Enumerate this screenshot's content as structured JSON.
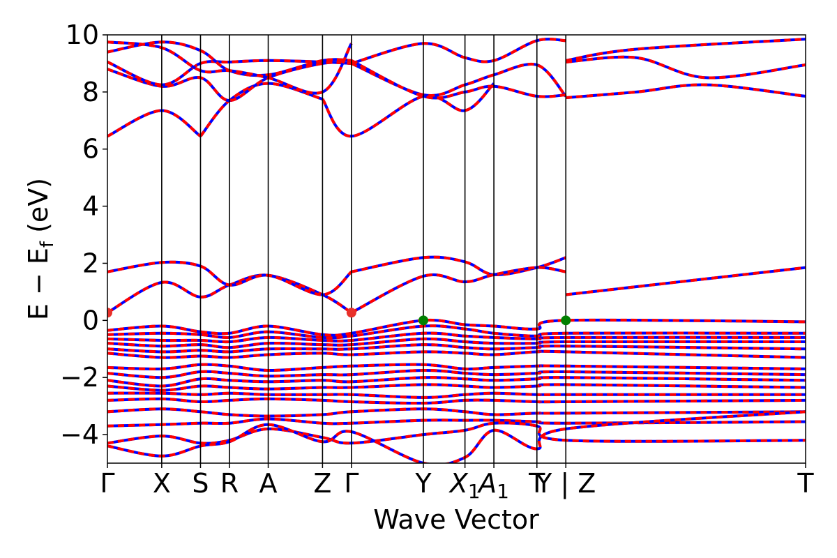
{
  "chart_data": {
    "type": "line",
    "title": "",
    "xlabel": "Wave Vector",
    "ylabel": "E − E",
    "ylabel_sub": "f",
    "ylabel_unit": " (eV)",
    "ylim": [
      -5,
      10
    ],
    "yticks": [
      {
        "value": -4,
        "label": "−4"
      },
      {
        "value": -2,
        "label": "−2"
      },
      {
        "value": 0,
        "label": "0"
      },
      {
        "value": 2,
        "label": "2"
      },
      {
        "value": 4,
        "label": "4"
      },
      {
        "value": 6,
        "label": "6"
      },
      {
        "value": 8,
        "label": "8"
      },
      {
        "value": 10,
        "label": "10"
      }
    ],
    "xlim": [
      0,
      9.9
    ],
    "kpoints": [
      {
        "x": 0.0,
        "main": "Γ",
        "sub": ""
      },
      {
        "x": 0.77,
        "main": "X",
        "sub": ""
      },
      {
        "x": 1.32,
        "main": "S",
        "sub": ""
      },
      {
        "x": 1.73,
        "main": "R",
        "sub": ""
      },
      {
        "x": 2.28,
        "main": "A",
        "sub": ""
      },
      {
        "x": 3.05,
        "main": "Z",
        "sub": ""
      },
      {
        "x": 3.46,
        "main": "Γ",
        "sub": ""
      },
      {
        "x": 4.48,
        "main": "Y",
        "sub": ""
      },
      {
        "x": 5.07,
        "main": "X",
        "sub": "1"
      },
      {
        "x": 5.48,
        "main": "A",
        "sub": "1"
      },
      {
        "x": 6.09,
        "main": "T",
        "sub": ""
      },
      {
        "x": 6.5,
        "main": "Y | Z",
        "sub": ""
      },
      {
        "x": 9.9,
        "main": "T",
        "sub": ""
      }
    ],
    "colors": {
      "band_primary": "#ff0000",
      "band_secondary": "#0000ff",
      "vbm": "#008000",
      "cbm": "#e8312a",
      "kline": "#000000"
    },
    "vbm_points": [
      {
        "x": 4.48,
        "y": 0.0
      },
      {
        "x": 6.5,
        "y": 0.0
      }
    ],
    "cbm_points": [
      {
        "x": 0.0,
        "y": 0.27
      },
      {
        "x": 3.46,
        "y": 0.27
      }
    ],
    "series": [
      {
        "x": [
          0.0,
          0.77,
          1.32,
          1.73,
          2.28,
          3.05,
          3.46
        ],
        "values": [
          0.27,
          1.33,
          0.82,
          1.24,
          1.58,
          0.9,
          0.27
        ]
      },
      {
        "x": [
          0.0,
          0.77,
          1.32,
          1.73,
          2.28,
          3.05,
          3.46
        ],
        "values": [
          1.7,
          2.03,
          1.9,
          1.24,
          1.58,
          0.9,
          1.7
        ]
      },
      {
        "x": [
          3.46,
          4.48,
          5.07,
          5.48,
          6.09,
          6.5
        ],
        "values": [
          1.7,
          2.2,
          2.05,
          1.6,
          1.85,
          2.2
        ]
      },
      {
        "x": [
          3.46,
          4.48,
          5.07,
          5.48,
          6.09,
          6.5
        ],
        "values": [
          0.27,
          1.55,
          1.35,
          1.6,
          1.85,
          1.7
        ]
      },
      {
        "x": [
          6.5,
          9.9
        ],
        "values": [
          0.9,
          1.85
        ]
      },
      {
        "x": [
          0.0,
          0.77,
          1.32
        ],
        "values": [
          6.45,
          7.35,
          6.45
        ]
      },
      {
        "x": [
          1.32,
          1.73,
          2.28,
          3.05
        ],
        "values": [
          6.45,
          7.7,
          8.3,
          7.75
        ]
      },
      {
        "x": [
          3.05,
          3.46,
          4.48,
          5.07,
          5.48
        ],
        "values": [
          7.75,
          6.45,
          7.85,
          7.35,
          8.3
        ]
      },
      {
        "x": [
          0.0,
          0.77,
          1.32,
          1.73,
          2.28,
          3.05,
          3.46
        ],
        "values": [
          8.8,
          8.2,
          8.5,
          7.7,
          8.5,
          9.0,
          9.0
        ]
      },
      {
        "x": [
          0.0,
          0.77,
          1.32,
          1.73,
          2.28,
          3.05,
          3.46
        ],
        "values": [
          9.05,
          8.25,
          9.0,
          9.05,
          9.1,
          9.05,
          9.0
        ]
      },
      {
        "x": [
          0.0,
          0.77,
          1.32,
          1.73,
          2.28,
          3.05,
          3.46
        ],
        "values": [
          9.4,
          9.75,
          9.45,
          8.75,
          8.6,
          9.1,
          9.1
        ]
      },
      {
        "x": [
          0.0,
          0.77,
          1.32,
          1.73,
          2.28,
          3.05,
          3.46
        ],
        "values": [
          9.75,
          9.55,
          8.75,
          8.75,
          8.5,
          8.0,
          9.7
        ]
      },
      {
        "x": [
          3.46,
          4.48,
          5.07,
          5.48,
          6.09,
          6.5
        ],
        "values": [
          9.0,
          9.7,
          9.2,
          9.1,
          9.8,
          9.8
        ]
      },
      {
        "x": [
          3.46,
          4.48,
          5.07,
          5.48,
          6.09,
          6.5
        ],
        "values": [
          9.0,
          7.9,
          8.25,
          8.6,
          8.95,
          7.85
        ]
      },
      {
        "x": [
          3.46,
          4.48,
          5.07,
          5.48,
          6.09,
          6.5
        ],
        "values": [
          9.1,
          7.85,
          8.0,
          8.2,
          7.85,
          7.9
        ]
      },
      {
        "x": [
          6.5,
          7.5,
          8.5,
          9.9
        ],
        "values": [
          9.05,
          9.2,
          8.5,
          8.95
        ]
      },
      {
        "x": [
          6.5,
          7.5,
          8.5,
          9.9
        ],
        "values": [
          7.8,
          8.0,
          8.25,
          7.85
        ]
      },
      {
        "x": [
          6.5,
          7.5,
          9.9
        ],
        "values": [
          9.1,
          9.5,
          9.85
        ]
      },
      {
        "x": [
          0.0,
          0.77,
          1.32,
          1.73,
          2.28,
          3.05,
          3.46,
          4.48,
          5.07,
          5.48,
          6.09,
          6.5,
          9.9
        ],
        "values": [
          -0.35,
          -0.2,
          -0.4,
          -0.45,
          -0.2,
          -0.5,
          -0.45,
          0.0,
          -0.15,
          -0.2,
          -0.3,
          0.0,
          -0.05
        ]
      },
      {
        "x": [
          0.0,
          0.77,
          1.32,
          1.73,
          2.28,
          3.05,
          3.46,
          4.48,
          5.07,
          5.48,
          6.09,
          6.5,
          9.9
        ],
        "values": [
          -0.5,
          -0.45,
          -0.5,
          -0.6,
          -0.4,
          -0.6,
          -0.55,
          -0.2,
          -0.3,
          -0.45,
          -0.55,
          -0.45,
          -0.45
        ]
      },
      {
        "x": [
          0.0,
          0.77,
          1.32,
          1.73,
          2.28,
          3.05,
          3.46,
          4.48,
          5.07,
          5.48,
          6.09,
          6.5,
          9.9
        ],
        "values": [
          -0.65,
          -0.7,
          -0.7,
          -0.75,
          -0.6,
          -0.7,
          -0.7,
          -0.45,
          -0.55,
          -0.6,
          -0.65,
          -0.6,
          -0.6
        ]
      },
      {
        "x": [
          0.0,
          0.77,
          1.32,
          1.73,
          2.28,
          3.05,
          3.46,
          4.48,
          5.07,
          5.48,
          6.09,
          6.5,
          9.9
        ],
        "values": [
          -0.8,
          -0.9,
          -0.85,
          -0.95,
          -0.8,
          -0.85,
          -0.85,
          -0.65,
          -0.75,
          -0.8,
          -0.8,
          -0.75,
          -0.75
        ]
      },
      {
        "x": [
          0.0,
          0.77,
          1.32,
          1.73,
          2.28,
          3.05,
          3.46,
          4.48,
          5.07,
          5.48,
          6.09,
          6.5,
          9.9
        ],
        "values": [
          -1.0,
          -1.1,
          -1.05,
          -1.1,
          -1.0,
          -1.0,
          -1.0,
          -0.85,
          -0.95,
          -1.0,
          -0.95,
          -0.9,
          -1.0
        ]
      },
      {
        "x": [
          0.0,
          0.77,
          1.32,
          1.73,
          2.28,
          3.05,
          3.46,
          4.48,
          5.07,
          5.48,
          6.09,
          6.5,
          9.9
        ],
        "values": [
          -1.15,
          -1.3,
          -1.25,
          -1.3,
          -1.2,
          -1.15,
          -1.2,
          -1.1,
          -1.15,
          -1.2,
          -1.1,
          -1.1,
          -1.3
        ]
      },
      {
        "x": [
          0.0,
          0.77,
          1.32,
          1.73,
          2.28,
          3.05,
          3.46,
          4.48,
          5.07,
          5.48,
          6.09,
          6.5,
          9.9
        ],
        "values": [
          -1.65,
          -1.7,
          -1.55,
          -1.6,
          -1.75,
          -1.65,
          -1.6,
          -1.55,
          -1.7,
          -1.65,
          -1.6,
          -1.6,
          -1.7
        ]
      },
      {
        "x": [
          0.0,
          0.77,
          1.32,
          1.73,
          2.28,
          3.05,
          3.46,
          4.48,
          5.07,
          5.48,
          6.09,
          6.5,
          9.9
        ],
        "values": [
          -1.85,
          -2.0,
          -1.8,
          -1.85,
          -1.95,
          -1.9,
          -1.9,
          -1.75,
          -1.85,
          -1.9,
          -1.85,
          -1.8,
          -1.9
        ]
      },
      {
        "x": [
          0.0,
          0.77,
          1.32,
          1.73,
          2.28,
          3.05,
          3.46,
          4.48,
          5.07,
          5.48,
          6.09,
          6.5,
          9.9
        ],
        "values": [
          -2.1,
          -2.3,
          -2.05,
          -2.1,
          -2.15,
          -2.1,
          -2.15,
          -2.0,
          -2.05,
          -2.1,
          -2.05,
          -2.0,
          -2.1
        ]
      },
      {
        "x": [
          0.0,
          0.77,
          1.32,
          1.73,
          2.28,
          3.05,
          3.46,
          4.48,
          5.07,
          5.48,
          6.09,
          6.5,
          9.9
        ],
        "values": [
          -2.3,
          -2.45,
          -2.3,
          -2.35,
          -2.4,
          -2.35,
          -2.35,
          -2.25,
          -2.3,
          -2.35,
          -2.3,
          -2.25,
          -2.35
        ]
      },
      {
        "x": [
          0.0,
          0.77,
          1.32,
          1.73,
          2.28,
          3.05,
          3.46,
          4.48,
          5.07,
          5.48,
          6.09,
          6.5,
          9.9
        ],
        "values": [
          -2.55,
          -2.55,
          -2.6,
          -2.55,
          -2.6,
          -2.6,
          -2.6,
          -2.7,
          -2.6,
          -2.55,
          -2.6,
          -2.6,
          -2.6
        ]
      },
      {
        "x": [
          0.0,
          0.77,
          1.32,
          1.73,
          2.28,
          3.05,
          3.46,
          4.48,
          5.07,
          5.48,
          6.09,
          6.5,
          9.9
        ],
        "values": [
          -2.8,
          -2.75,
          -2.85,
          -2.8,
          -2.75,
          -2.8,
          -2.85,
          -2.9,
          -2.8,
          -2.8,
          -2.85,
          -2.85,
          -2.8
        ]
      },
      {
        "x": [
          0.0,
          0.77,
          1.32,
          1.73,
          2.28,
          3.05,
          3.46,
          4.48,
          5.07,
          5.48,
          6.09,
          6.5,
          9.9
        ],
        "values": [
          -3.2,
          -3.1,
          -3.2,
          -3.3,
          -3.35,
          -3.3,
          -3.2,
          -3.1,
          -3.2,
          -3.3,
          -3.25,
          -3.25,
          -3.2
        ]
      },
      {
        "x": [
          0.0,
          0.77,
          1.32,
          1.73,
          2.28,
          3.05,
          3.46,
          4.48,
          5.07,
          5.48,
          6.09,
          6.5,
          9.9
        ],
        "values": [
          -3.7,
          -3.65,
          -3.6,
          -3.6,
          -3.45,
          -3.6,
          -3.6,
          -3.5,
          -3.5,
          -3.5,
          -3.55,
          -3.6,
          -3.55
        ]
      },
      {
        "x": [
          0.0,
          0.77,
          1.32,
          1.73,
          2.28,
          3.05,
          3.46,
          4.48,
          5.07,
          5.48,
          6.09,
          6.5,
          9.9
        ],
        "values": [
          -4.3,
          -4.05,
          -4.3,
          -4.2,
          -3.8,
          -4.1,
          -4.3,
          -4.0,
          -3.85,
          -3.6,
          -3.7,
          -4.2,
          -4.2
        ]
      },
      {
        "x": [
          0.0,
          0.77,
          1.32,
          1.73,
          2.28,
          3.05,
          3.46,
          4.48,
          5.07,
          5.48,
          6.09,
          6.5,
          9.9
        ],
        "values": [
          -4.4,
          -4.75,
          -4.4,
          -4.25,
          -3.65,
          -4.25,
          -3.9,
          -5.0,
          -4.8,
          -3.85,
          -4.5,
          -3.8,
          -3.2
        ]
      }
    ]
  }
}
